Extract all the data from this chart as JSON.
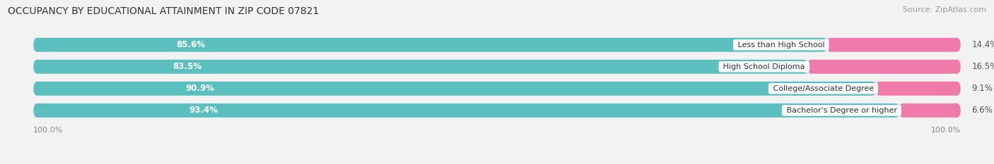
{
  "title": "OCCUPANCY BY EDUCATIONAL ATTAINMENT IN ZIP CODE 07821",
  "source": "Source: ZipAtlas.com",
  "categories": [
    "Less than High School",
    "High School Diploma",
    "College/Associate Degree",
    "Bachelor's Degree or higher"
  ],
  "owner_pct": [
    85.6,
    83.5,
    90.9,
    93.4
  ],
  "renter_pct": [
    14.4,
    16.5,
    9.1,
    6.6
  ],
  "owner_color": "#5bbfbf",
  "renter_color": "#f07aaa",
  "bg_color": "#f2f2f2",
  "bar_container_color": "#e0e0e0",
  "title_color": "#333333",
  "source_color": "#999999",
  "label_color": "#ffffff",
  "category_color": "#333333",
  "tick_color": "#888888",
  "title_fontsize": 10,
  "label_fontsize": 8.5,
  "cat_fontsize": 8,
  "tick_fontsize": 8,
  "legend_fontsize": 8,
  "source_fontsize": 8,
  "bar_height": 0.62,
  "x_left_label": "100.0%",
  "x_right_label": "100.0%"
}
